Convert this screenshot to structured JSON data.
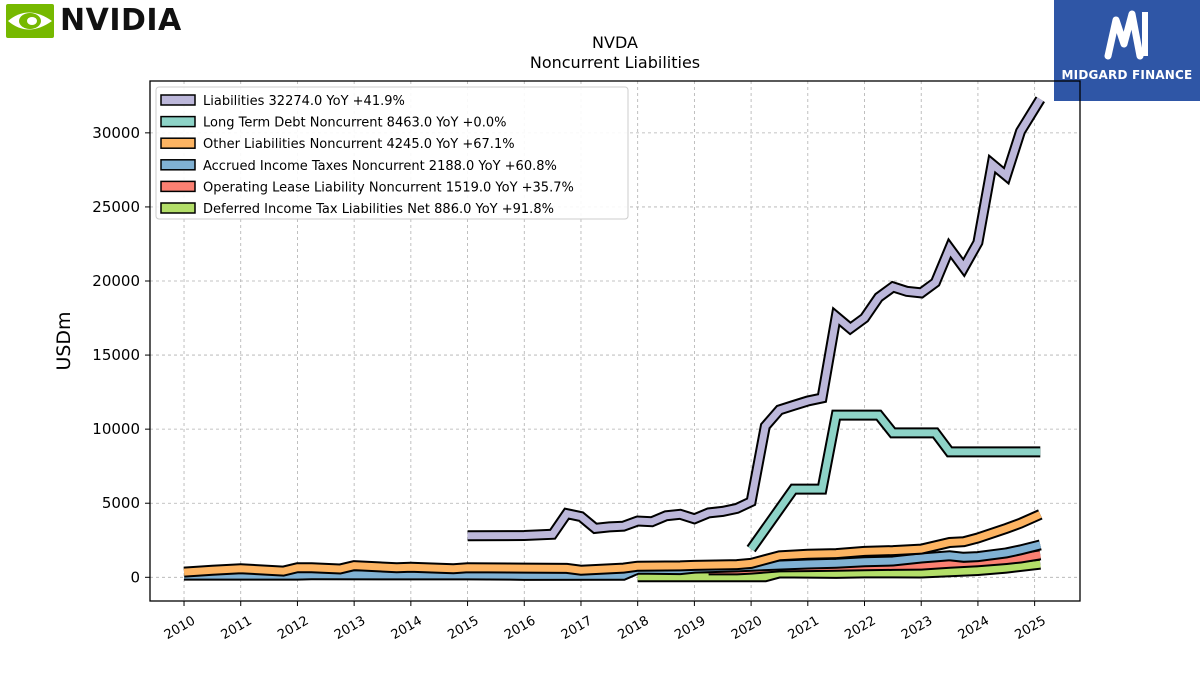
{
  "brand": {
    "name": "NVIDIA",
    "logo_icon": "nvidia-eye-icon",
    "accent": "#76b900"
  },
  "watermark": {
    "name": "MIDGARD FINANCE",
    "icon": "midgard-m-icon",
    "color": "#2f56a6"
  },
  "chart_data": {
    "type": "line",
    "title": "NVDA",
    "subtitle": "Noncurrent  Liabilities",
    "xlabel": "",
    "ylabel": "USDm",
    "xlim": [
      2009.4,
      2025.8
    ],
    "ylim": [
      -1600,
      33500
    ],
    "yticks": [
      0,
      5000,
      10000,
      15000,
      20000,
      25000,
      30000
    ],
    "xticks": [
      2010,
      2011,
      2012,
      2013,
      2014,
      2015,
      2016,
      2017,
      2018,
      2019,
      2020,
      2021,
      2022,
      2023,
      2024,
      2025
    ],
    "grid": true,
    "legend_position": "top-left",
    "series": [
      {
        "name": "Liabilities",
        "legend": "Liabilities  32274.0 YoY +41.9%",
        "color": "#bcb7da",
        "points": [
          [
            2015.0,
            2800
          ],
          [
            2016.0,
            2820
          ],
          [
            2016.5,
            2900
          ],
          [
            2016.75,
            4300
          ],
          [
            2017.0,
            4100
          ],
          [
            2017.25,
            3300
          ],
          [
            2017.5,
            3400
          ],
          [
            2017.75,
            3450
          ],
          [
            2018.0,
            3800
          ],
          [
            2018.25,
            3750
          ],
          [
            2018.5,
            4150
          ],
          [
            2018.75,
            4250
          ],
          [
            2019.0,
            3950
          ],
          [
            2019.25,
            4350
          ],
          [
            2019.5,
            4450
          ],
          [
            2019.75,
            4650
          ],
          [
            2020.0,
            5100
          ],
          [
            2020.25,
            10200
          ],
          [
            2020.5,
            11300
          ],
          [
            2020.75,
            11600
          ],
          [
            2021.0,
            11900
          ],
          [
            2021.25,
            12100
          ],
          [
            2021.5,
            17600
          ],
          [
            2021.75,
            16800
          ],
          [
            2022.0,
            17500
          ],
          [
            2022.25,
            18900
          ],
          [
            2022.5,
            19600
          ],
          [
            2022.75,
            19300
          ],
          [
            2023.0,
            19200
          ],
          [
            2023.25,
            19900
          ],
          [
            2023.5,
            22200
          ],
          [
            2023.75,
            20900
          ],
          [
            2024.0,
            22600
          ],
          [
            2024.25,
            27900
          ],
          [
            2024.5,
            27100
          ],
          [
            2024.75,
            30100
          ],
          [
            2025.1,
            32274
          ]
        ]
      },
      {
        "name": "Long Term Debt Noncurrent",
        "legend": "Long Term Debt Noncurrent  8463.0 YoY +0.0%",
        "color": "#8dd3c7",
        "points": [
          [
            2020.0,
            1900
          ],
          [
            2020.75,
            5950
          ],
          [
            2021.25,
            5950
          ],
          [
            2021.5,
            10950
          ],
          [
            2022.25,
            10950
          ],
          [
            2022.5,
            9750
          ],
          [
            2023.25,
            9750
          ],
          [
            2023.5,
            8463
          ],
          [
            2025.1,
            8463
          ]
        ]
      },
      {
        "name": "Other Liabilities Noncurrent",
        "legend": "Other Liabilities Noncurrent  4245.0 YoY +67.1%",
        "color": "#fdb462",
        "points": [
          [
            2010.0,
            350
          ],
          [
            2010.5,
            480
          ],
          [
            2011.0,
            580
          ],
          [
            2011.75,
            420
          ],
          [
            2012.0,
            650
          ],
          [
            2012.25,
            650
          ],
          [
            2012.75,
            560
          ],
          [
            2013.0,
            790
          ],
          [
            2013.75,
            640
          ],
          [
            2014.0,
            680
          ],
          [
            2014.75,
            580
          ],
          [
            2015.0,
            640
          ],
          [
            2016.0,
            620
          ],
          [
            2016.75,
            600
          ],
          [
            2017.0,
            480
          ],
          [
            2017.75,
            620
          ],
          [
            2018.0,
            750
          ],
          [
            2018.75,
            770
          ],
          [
            2019.0,
            800
          ],
          [
            2019.75,
            860
          ],
          [
            2020.0,
            940
          ],
          [
            2020.5,
            1450
          ],
          [
            2021.0,
            1550
          ],
          [
            2021.5,
            1600
          ],
          [
            2022.0,
            1750
          ],
          [
            2022.5,
            1800
          ],
          [
            2023.0,
            1900
          ],
          [
            2023.5,
            2350
          ],
          [
            2023.75,
            2400
          ],
          [
            2024.0,
            2650
          ],
          [
            2024.5,
            3300
          ],
          [
            2024.75,
            3650
          ],
          [
            2025.1,
            4245
          ]
        ]
      },
      {
        "name": "Accrued Income Taxes Noncurrent",
        "legend": "Accrued Income Taxes Noncurrent  2188.0 YoY +60.8%",
        "color": "#80b1d3",
        "points": [
          [
            2010.0,
            150
          ],
          [
            2012.0,
            150
          ],
          [
            2012.25,
            170
          ],
          [
            2015.0,
            160
          ],
          [
            2015.75,
            150
          ],
          [
            2016.0,
            130
          ],
          [
            2017.75,
            140
          ],
          [
            2018.0,
            550
          ],
          [
            2018.75,
            520
          ],
          [
            2019.0,
            620
          ],
          [
            2019.75,
            700
          ],
          [
            2020.0,
            750
          ],
          [
            2021.0,
            900
          ],
          [
            2021.5,
            950
          ],
          [
            2022.0,
            1050
          ],
          [
            2022.5,
            1100
          ],
          [
            2023.0,
            1300
          ],
          [
            2023.5,
            1450
          ],
          [
            2023.75,
            1350
          ],
          [
            2024.0,
            1400
          ],
          [
            2024.5,
            1650
          ],
          [
            2024.75,
            1850
          ],
          [
            2025.1,
            2188
          ]
        ]
      },
      {
        "name": "Operating Lease Liability Noncurrent",
        "legend": "Operating Lease Liability Noncurrent  1519.0 YoY +35.7%",
        "color": "#fb8072",
        "points": [
          [
            2019.25,
            500
          ],
          [
            2019.75,
            500
          ],
          [
            2020.0,
            550
          ],
          [
            2020.5,
            700
          ],
          [
            2021.0,
            720
          ],
          [
            2021.5,
            750
          ],
          [
            2022.0,
            780
          ],
          [
            2022.5,
            800
          ],
          [
            2023.0,
            820
          ],
          [
            2023.5,
            950
          ],
          [
            2024.0,
            1050
          ],
          [
            2024.5,
            1200
          ],
          [
            2024.75,
            1300
          ],
          [
            2025.1,
            1519
          ]
        ]
      },
      {
        "name": "Deferred Income Tax Liabilities Net",
        "legend": "Deferred Income Tax Liabilities Net  886.0 YoY +91.8%",
        "color": "#b3de69",
        "points": [
          [
            2018.0,
            40
          ],
          [
            2020.25,
            40
          ],
          [
            2020.5,
            300
          ],
          [
            2021.0,
            280
          ],
          [
            2021.5,
            260
          ],
          [
            2022.0,
            300
          ],
          [
            2022.5,
            300
          ],
          [
            2023.0,
            290
          ],
          [
            2023.5,
            380
          ],
          [
            2024.0,
            460
          ],
          [
            2024.5,
            620
          ],
          [
            2025.1,
            886
          ]
        ]
      }
    ]
  }
}
